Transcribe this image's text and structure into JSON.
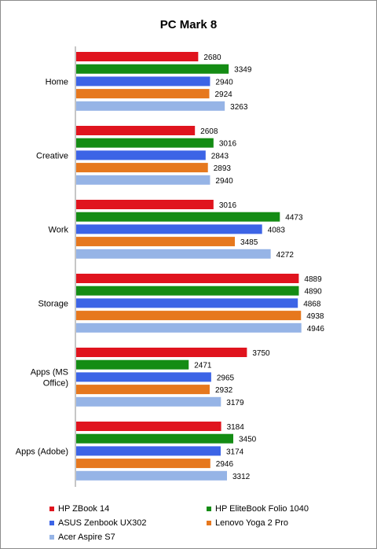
{
  "chart_data": {
    "type": "bar",
    "orientation": "horizontal",
    "title": "PC Mark 8",
    "categories": [
      "Home",
      "Creative",
      "Work",
      "Storage",
      "Apps (MS Office)",
      "Apps (Adobe)"
    ],
    "category_lines": [
      [
        "Home"
      ],
      [
        "Creative"
      ],
      [
        "Work"
      ],
      [
        "Storage"
      ],
      [
        "Apps (MS",
        "Office)"
      ],
      [
        "Apps (Adobe)"
      ]
    ],
    "series": [
      {
        "name": "HP ZBook 14",
        "color": "#e0141e",
        "values": [
          2680,
          2608,
          3016,
          4889,
          3750,
          3184
        ]
      },
      {
        "name": "HP EliteBook Folio 1040",
        "color": "#148c14",
        "values": [
          3349,
          3016,
          4473,
          4890,
          2471,
          3450
        ]
      },
      {
        "name": "ASUS Zenbook UX302",
        "color": "#3c64e6",
        "values": [
          2940,
          2843,
          4083,
          4868,
          2965,
          3174
        ]
      },
      {
        "name": "Lenovo Yoga 2 Pro",
        "color": "#e6781e",
        "values": [
          2924,
          2893,
          3485,
          4938,
          2932,
          2946
        ]
      },
      {
        "name": "Acer Aspire S7",
        "color": "#96b4e6",
        "values": [
          3263,
          2940,
          4272,
          4946,
          3179,
          3312
        ]
      }
    ],
    "xlim": [
      0,
      5200
    ],
    "grid": false,
    "legend_position": "bottom"
  }
}
